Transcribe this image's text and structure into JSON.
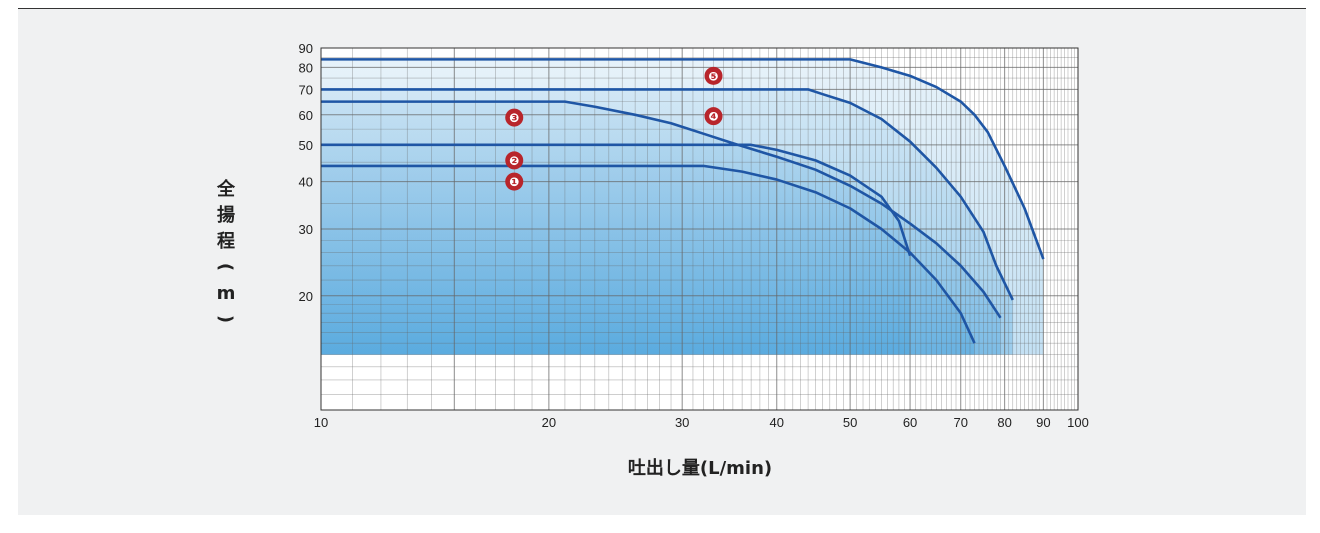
{
  "chart_data": {
    "type": "line",
    "x_scale": "log",
    "y_scale": "log",
    "xlim": [
      10,
      100
    ],
    "ylim": [
      10,
      90
    ],
    "grid": true,
    "xlabel": "吐出し量(L/min)",
    "ylabel": "全揚程(m)",
    "x_ticks": [
      "10",
      "20",
      "30",
      "40",
      "50",
      "60",
      "70",
      "80",
      "90",
      "100"
    ],
    "y_ticks": [
      "20",
      "30",
      "40",
      "50",
      "60",
      "70",
      "80",
      "90"
    ],
    "colors": {
      "curve": "#1f56a5",
      "fill": "#3a9ad9",
      "label_bg": "#b8252b",
      "grid": "#666666"
    },
    "series": [
      {
        "name": "❶",
        "x": [
          10,
          32,
          36,
          40,
          45,
          50,
          55,
          60,
          65,
          70,
          73
        ],
        "y": [
          44,
          44,
          42.5,
          40.5,
          37.5,
          34,
          30,
          26,
          22,
          18,
          15
        ]
      },
      {
        "name": "❷",
        "x": [
          10,
          37,
          40,
          45,
          50,
          55,
          58,
          60
        ],
        "y": [
          50,
          50,
          48.5,
          45.5,
          41.5,
          36.5,
          31.5,
          25.5
        ]
      },
      {
        "name": "❸",
        "x": [
          10,
          21,
          23,
          26,
          29,
          32,
          35,
          40,
          45,
          50,
          55,
          60,
          65,
          70,
          75,
          79
        ],
        "y": [
          65,
          65,
          63,
          60,
          57,
          53.5,
          50.5,
          46.5,
          43,
          39,
          35,
          31,
          27.5,
          24,
          20.5,
          17.5
        ]
      },
      {
        "name": "❹",
        "x": [
          10,
          44,
          46,
          50,
          55,
          60,
          65,
          70,
          75,
          78,
          82
        ],
        "y": [
          70,
          70,
          68,
          64.5,
          58.5,
          51,
          43.5,
          36.5,
          29.5,
          24,
          19.5
        ]
      },
      {
        "name": "❺",
        "x": [
          10,
          50,
          55,
          60,
          65,
          70,
          73,
          76,
          80,
          85,
          90
        ],
        "y": [
          84,
          84,
          80,
          76,
          71,
          65,
          60,
          54,
          44,
          34,
          25
        ]
      }
    ]
  }
}
